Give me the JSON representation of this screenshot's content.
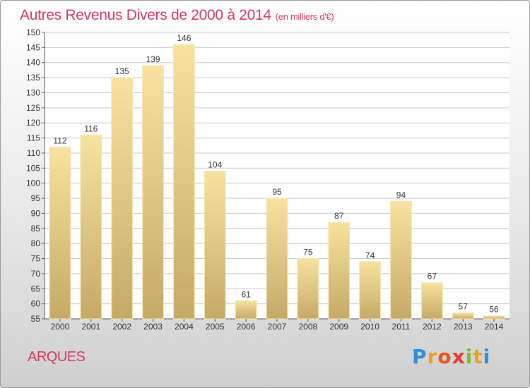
{
  "header": {
    "title": "Autres Revenus Divers de 2000 à 2014",
    "unit": "(en milliers d'€)"
  },
  "footer": {
    "location": "ARQUES",
    "logo_letters": [
      "P",
      "r",
      "o",
      "x",
      "i",
      "t",
      "i"
    ]
  },
  "colors": {
    "accent": "#d13a5e",
    "bar_light": "#f6df9b",
    "bar_dark": "#c8ad6a",
    "grid": "#c8c8c8",
    "plot_bg": "#ffffff"
  },
  "chart_data": {
    "type": "bar",
    "title": "Autres Revenus Divers de 2000 à 2014",
    "xlabel": "",
    "ylabel": "",
    "categories": [
      "2000",
      "2001",
      "2002",
      "2003",
      "2004",
      "2005",
      "2006",
      "2007",
      "2008",
      "2009",
      "2010",
      "2011",
      "2012",
      "2013",
      "2014"
    ],
    "values": [
      112,
      116,
      135,
      139,
      146,
      104,
      61,
      95,
      75,
      87,
      74,
      94,
      67,
      57,
      56
    ],
    "ylim": [
      55,
      150
    ],
    "yticks": [
      55,
      60,
      65,
      70,
      75,
      80,
      85,
      90,
      95,
      100,
      105,
      110,
      115,
      120,
      125,
      130,
      135,
      140,
      145,
      150
    ],
    "grid": "horizontal",
    "data_labels": true
  }
}
